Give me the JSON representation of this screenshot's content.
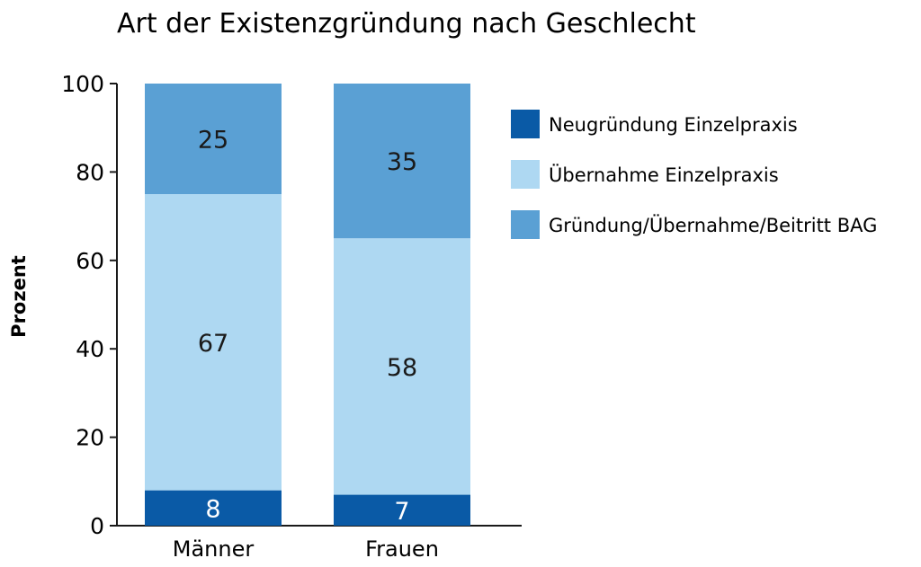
{
  "chart_data": {
    "type": "bar",
    "stacked": true,
    "percent_stacked": true,
    "title": "Art der Existenzgründung nach Geschlecht",
    "xlabel": "",
    "ylabel": "Prozent",
    "ylim": [
      0,
      100
    ],
    "yticks": [
      0,
      20,
      40,
      60,
      80,
      100
    ],
    "grid": false,
    "legend_position": "right",
    "categories": [
      "Männer",
      "Frauen"
    ],
    "series": [
      {
        "name": "Neugründung Einzelpraxis",
        "color": "#0a5aa6",
        "label_color": "#ffffff",
        "values": [
          8,
          7
        ]
      },
      {
        "name": "Übernahme Einzelpraxis",
        "color": "#aed8f2",
        "label_color": "#1a1a1a",
        "values": [
          67,
          58
        ]
      },
      {
        "name": "Gründung/Übernahme/Beitritt BAG",
        "color": "#5aa0d4",
        "label_color": "#1a1a1a",
        "values": [
          25,
          35
        ]
      }
    ]
  }
}
